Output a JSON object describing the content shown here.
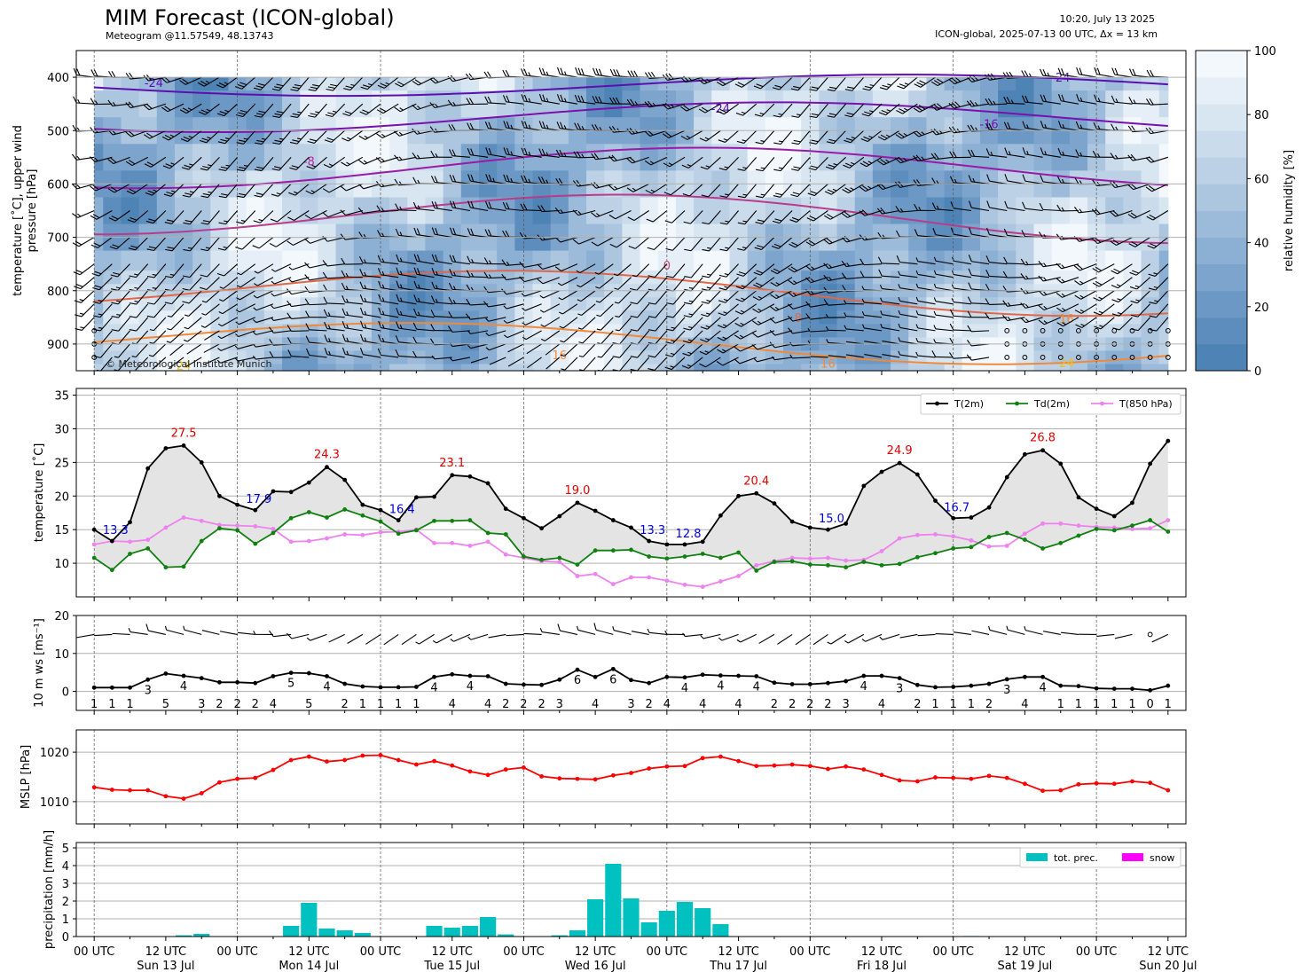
{
  "header": {
    "title": "MIM Forecast (ICON-global)",
    "subtitle": "Meteogram @11.57549, 48.13743",
    "run_time": "10:20, July 13 2025",
    "run_info": "ICON-global, 2025-07-13 00 UTC, Δx = 13 km"
  },
  "chart_data": [
    {
      "id": "upper-air",
      "type": "heatmap",
      "ylabel_lines": [
        "temperature [˚C], upper wind",
        "pressure [hPa]"
      ],
      "ylim": [
        950,
        350
      ],
      "yticks": [
        400,
        500,
        600,
        700,
        800,
        900
      ],
      "levels_hpa": [
        400,
        450,
        500,
        550,
        600,
        650,
        700,
        750,
        775,
        800,
        825,
        850,
        875,
        900,
        925,
        950
      ],
      "colorbar": {
        "label": "relative humidity [%]",
        "range": [
          0,
          100
        ],
        "ticks": [
          0,
          20,
          40,
          60,
          80,
          100
        ]
      },
      "copyright": "© Meteorological Institute Munich",
      "isotherm_labels": [
        {
          "value": "-24",
          "hour": 10,
          "p": 410,
          "color": "#5b0fb0"
        },
        {
          "value": "-24",
          "hour": 105,
          "p": 458,
          "color": "#5b0fb0"
        },
        {
          "value": "-24",
          "hour": 162,
          "p": 400,
          "color": "#5b0fb0"
        },
        {
          "value": "-16",
          "hour": 150,
          "p": 487,
          "color": "#7a10b0"
        },
        {
          "value": "-8",
          "hour": 36,
          "p": 557,
          "color": "#b02c9c"
        },
        {
          "value": "0",
          "hour": 96,
          "p": 752,
          "color": "#c8476c"
        },
        {
          "value": "8",
          "hour": 118,
          "p": 850,
          "color": "#e0684a"
        },
        {
          "value": "16",
          "hour": 78,
          "p": 920,
          "color": "#f08a3a"
        },
        {
          "value": "16",
          "hour": 123,
          "p": 936,
          "color": "#f08a3a"
        },
        {
          "value": "16",
          "hour": 163,
          "p": 852,
          "color": "#f08a3a"
        },
        {
          "value": "24",
          "hour": 15,
          "p": 940,
          "color": "#f0c020"
        },
        {
          "value": "24",
          "hour": 163,
          "p": 935,
          "color": "#f0c020"
        }
      ]
    },
    {
      "id": "temperature",
      "type": "line",
      "ylabel": "temperature [˚C]",
      "ylim": [
        5,
        36
      ],
      "yticks": [
        10,
        15,
        20,
        25,
        30,
        35
      ],
      "series": [
        {
          "name": "T(2m)",
          "color": "#000000",
          "values": [
            15.0,
            13.3,
            16.1,
            24.1,
            27.1,
            27.5,
            25.0,
            20.0,
            18.7,
            17.9,
            20.7,
            20.6,
            22.0,
            24.3,
            22.4,
            18.7,
            17.9,
            16.4,
            19.8,
            19.9,
            23.1,
            22.9,
            21.9,
            18.1,
            16.7,
            15.2,
            17.0,
            19.0,
            17.8,
            16.4,
            15.3,
            13.3,
            12.8,
            12.8,
            13.2,
            17.1,
            20.0,
            20.4,
            18.9,
            16.2,
            15.3,
            15.0,
            15.9,
            21.5,
            23.6,
            24.9,
            23.2,
            19.3,
            16.7,
            16.8,
            18.3,
            22.8,
            26.2,
            26.8,
            24.8,
            19.8,
            18.1,
            17.0,
            19.0,
            24.8,
            28.2
          ]
        },
        {
          "name": "Td(2m)",
          "color": "#108010",
          "values": [
            10.8,
            9.0,
            11.4,
            12.2,
            9.4,
            9.5,
            13.3,
            15.2,
            14.9,
            12.9,
            14.5,
            16.7,
            17.6,
            16.8,
            18.0,
            17.1,
            16.2,
            14.4,
            14.9,
            16.3,
            16.3,
            16.4,
            14.5,
            14.3,
            11.0,
            10.5,
            10.8,
            9.8,
            11.9,
            11.9,
            12.0,
            11.0,
            10.7,
            11.0,
            11.4,
            10.8,
            11.6,
            8.9,
            10.2,
            10.3,
            9.8,
            9.7,
            9.4,
            10.2,
            9.7,
            9.9,
            10.9,
            11.5,
            12.2,
            12.4,
            13.9,
            14.5,
            13.5,
            12.2,
            13.0,
            14.1,
            15.1,
            14.9,
            15.6,
            16.4,
            14.7
          ]
        },
        {
          "name": "T(850 hPa)",
          "color": "#ee82ee",
          "values": [
            12.8,
            13.3,
            13.2,
            13.5,
            15.3,
            16.8,
            16.3,
            15.7,
            15.6,
            15.5,
            15.1,
            13.2,
            13.3,
            13.7,
            14.3,
            14.2,
            14.6,
            14.7,
            15.0,
            13.0,
            13.0,
            12.6,
            13.2,
            11.3,
            10.8,
            10.3,
            10.2,
            8.1,
            8.4,
            6.9,
            7.9,
            7.9,
            7.4,
            6.8,
            6.5,
            7.3,
            8.1,
            9.7,
            10.3,
            10.8,
            10.7,
            10.8,
            10.4,
            10.5,
            11.8,
            13.7,
            14.2,
            14.3,
            14.0,
            13.4,
            12.5,
            12.6,
            14.4,
            15.9,
            15.9,
            15.6,
            15.4,
            15.3,
            15.1,
            15.2,
            16.4
          ]
        }
      ],
      "max_labels": [
        {
          "text": "27.5",
          "hour": 15,
          "value": 27.5
        },
        {
          "text": "24.3",
          "hour": 39,
          "value": 24.3
        },
        {
          "text": "23.1",
          "hour": 60,
          "value": 23.1
        },
        {
          "text": "19.0",
          "hour": 81,
          "value": 19.0
        },
        {
          "text": "20.4",
          "hour": 111,
          "value": 20.4
        },
        {
          "text": "24.9",
          "hour": 135,
          "value": 24.9
        },
        {
          "text": "26.8",
          "hour": 159,
          "value": 26.8
        }
      ],
      "min_labels": [
        {
          "text": "13.3",
          "hour": 3,
          "value": 13.3
        },
        {
          "text": "17.9",
          "hour": 27,
          "value": 17.9
        },
        {
          "text": "16.4",
          "hour": 51,
          "value": 16.4
        },
        {
          "text": "13.3",
          "hour": 93,
          "value": 13.3
        },
        {
          "text": "12.8",
          "hour": 99,
          "value": 12.8
        },
        {
          "text": "15.0",
          "hour": 123,
          "value": 15.0
        },
        {
          "text": "16.7",
          "hour": 144,
          "value": 16.7
        }
      ],
      "legend_position": "top-right"
    },
    {
      "id": "wind",
      "type": "line",
      "ylabel": "10 m ws [ms⁻¹]",
      "ylim": [
        -5,
        20
      ],
      "yticks": [
        0,
        10,
        20
      ],
      "values": [
        1,
        1,
        1,
        3,
        5,
        4,
        3,
        2,
        2,
        2,
        4,
        5,
        5,
        4,
        2,
        1,
        1,
        1,
        1,
        4,
        4,
        4,
        4,
        2,
        2,
        2,
        3,
        6,
        4,
        6,
        3,
        2,
        4,
        4,
        4,
        4,
        4,
        4,
        2,
        2,
        2,
        2,
        3,
        4,
        4,
        3,
        2,
        1,
        1,
        1,
        2,
        3,
        4,
        4,
        1,
        1,
        1,
        1,
        1,
        0,
        1
      ],
      "series_values": [
        1.0,
        1.0,
        1.0,
        3.1,
        4.7,
        4.1,
        3.5,
        2.4,
        2.4,
        2.2,
        4.0,
        4.9,
        4.8,
        4.0,
        2.0,
        1.3,
        1.1,
        1.1,
        1.2,
        3.8,
        4.5,
        4.1,
        4.0,
        2.0,
        1.8,
        1.7,
        3.1,
        5.7,
        3.8,
        5.9,
        3.0,
        2.2,
        3.8,
        3.7,
        4.4,
        4.2,
        4.1,
        4.0,
        2.3,
        1.9,
        1.9,
        2.2,
        2.7,
        4.1,
        4.1,
        3.5,
        1.7,
        1.1,
        1.2,
        1.5,
        2.0,
        3.2,
        3.8,
        3.8,
        1.5,
        1.4,
        0.8,
        0.7,
        0.7,
        0.3,
        1.5
      ]
    },
    {
      "id": "mslp",
      "type": "line",
      "ylabel": "MSLP [hPa]",
      "ylim": [
        1005.5,
        1024.5
      ],
      "yticks": [
        1010,
        1020
      ],
      "values": [
        1012.9,
        1012.4,
        1012.3,
        1012.3,
        1011.1,
        1010.6,
        1011.7,
        1013.9,
        1014.6,
        1014.8,
        1016.4,
        1018.4,
        1019.1,
        1018.1,
        1018.4,
        1019.3,
        1019.4,
        1018.4,
        1017.5,
        1018.2,
        1017.3,
        1016.1,
        1015.4,
        1016.5,
        1016.9,
        1015.1,
        1014.7,
        1014.6,
        1014.5,
        1015.3,
        1015.8,
        1016.7,
        1017.1,
        1017.2,
        1018.8,
        1019.1,
        1018.2,
        1017.2,
        1017.3,
        1017.5,
        1017.2,
        1016.6,
        1017.1,
        1016.5,
        1015.4,
        1014.3,
        1014.1,
        1014.9,
        1014.8,
        1014.6,
        1015.2,
        1014.8,
        1013.6,
        1012.2,
        1012.3,
        1013.5,
        1013.7,
        1013.6,
        1014.1,
        1013.8,
        1012.3
      ],
      "color": "#ff0000"
    },
    {
      "id": "precipitation",
      "type": "bar",
      "ylabel": "precipitation [mm/h]",
      "ylim": [
        0,
        5.3
      ],
      "yticks": [
        0,
        1,
        2,
        3,
        4,
        5
      ],
      "bar_width_hours": 2.7,
      "bars": [
        {
          "hour": 15,
          "value": 0.07
        },
        {
          "hour": 18,
          "value": 0.15
        },
        {
          "hour": 33,
          "value": 0.6
        },
        {
          "hour": 36,
          "value": 1.9
        },
        {
          "hour": 39,
          "value": 0.45
        },
        {
          "hour": 42,
          "value": 0.35
        },
        {
          "hour": 45,
          "value": 0.2
        },
        {
          "hour": 57,
          "value": 0.6
        },
        {
          "hour": 60,
          "value": 0.5
        },
        {
          "hour": 63,
          "value": 0.6
        },
        {
          "hour": 66,
          "value": 1.1
        },
        {
          "hour": 69,
          "value": 0.12
        },
        {
          "hour": 78,
          "value": 0.07
        },
        {
          "hour": 81,
          "value": 0.35
        },
        {
          "hour": 84,
          "value": 2.1
        },
        {
          "hour": 87,
          "value": 4.1
        },
        {
          "hour": 90,
          "value": 2.15
        },
        {
          "hour": 93,
          "value": 0.8
        },
        {
          "hour": 96,
          "value": 1.45
        },
        {
          "hour": 99,
          "value": 1.95
        },
        {
          "hour": 102,
          "value": 1.6
        },
        {
          "hour": 105,
          "value": 0.7
        },
        {
          "hour": 147,
          "value": 0.03
        }
      ],
      "legend": [
        {
          "name": "tot. prec.",
          "color": "#00c0c0"
        },
        {
          "name": "snow",
          "color": "#ff00ff"
        }
      ],
      "legend_position": "top-right"
    }
  ],
  "x_axis": {
    "range_hours": [
      -3,
      183
    ],
    "tick_labels": [
      {
        "hour": 0,
        "line1": "00 UTC",
        "line2": ""
      },
      {
        "hour": 12,
        "line1": "12 UTC",
        "line2": "Sun 13 Jul"
      },
      {
        "hour": 24,
        "line1": "00 UTC",
        "line2": ""
      },
      {
        "hour": 36,
        "line1": "12 UTC",
        "line2": "Mon 14 Jul"
      },
      {
        "hour": 48,
        "line1": "00 UTC",
        "line2": ""
      },
      {
        "hour": 60,
        "line1": "12 UTC",
        "line2": "Tue 15 Jul"
      },
      {
        "hour": 72,
        "line1": "00 UTC",
        "line2": ""
      },
      {
        "hour": 84,
        "line1": "12 UTC",
        "line2": "Wed 16 Jul"
      },
      {
        "hour": 96,
        "line1": "00 UTC",
        "line2": ""
      },
      {
        "hour": 108,
        "line1": "12 UTC",
        "line2": "Thu 17 Jul"
      },
      {
        "hour": 120,
        "line1": "00 UTC",
        "line2": ""
      },
      {
        "hour": 132,
        "line1": "12 UTC",
        "line2": "Fri 18 Jul"
      },
      {
        "hour": 144,
        "line1": "00 UTC",
        "line2": ""
      },
      {
        "hour": 156,
        "line1": "12 UTC",
        "line2": "Sat 19 Jul"
      },
      {
        "hour": 168,
        "line1": "00 UTC",
        "line2": ""
      },
      {
        "hour": 180,
        "line1": "12 UTC",
        "line2": "Sun 20 Jul"
      }
    ]
  }
}
